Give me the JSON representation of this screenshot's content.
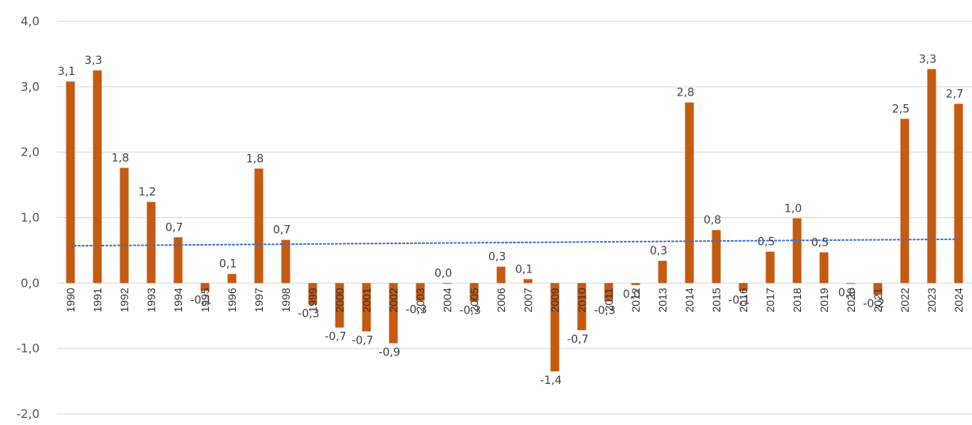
{
  "chart_data": {
    "type": "bar",
    "title": "",
    "xlabel": "",
    "ylabel": "",
    "ylim": [
      -2.0,
      4.0
    ],
    "yticks": [
      "4,0",
      "3,0",
      "2,0",
      "1,0",
      "0,0",
      "-1,0",
      "-2,0"
    ],
    "categories": [
      "1990",
      "1991",
      "1992",
      "1993",
      "1994",
      "1995",
      "1996",
      "1997",
      "1998",
      "1999",
      "2000",
      "2001",
      "2002",
      "2003",
      "2004",
      "2005",
      "2006",
      "2007",
      "2009",
      "2010",
      "2011",
      "2012",
      "2013",
      "2014",
      "2015",
      "2016",
      "2017",
      "2018",
      "2019",
      "2020",
      "2021",
      "2022",
      "2023",
      "2024"
    ],
    "series": [
      {
        "values": [
          3.08,
          3.25,
          1.76,
          1.24,
          0.7,
          -0.12,
          0.14,
          1.75,
          0.66,
          -0.33,
          -0.68,
          -0.74,
          -0.92,
          -0.27,
          0.0,
          -0.28,
          0.25,
          0.06,
          -1.35,
          -0.72,
          -0.28,
          -0.03,
          0.34,
          2.76,
          0.81,
          -0.12,
          0.48,
          0.99,
          0.47,
          -0.01,
          -0.18,
          2.51,
          3.27,
          2.74
        ],
        "labels": [
          "3,1",
          "3,3",
          "1,8",
          "1,2",
          "0,7",
          "-0,1",
          "0,1",
          "1,8",
          "0,7",
          "-0,3",
          "-0,7",
          "-0,7",
          "-0,9",
          "-0,3",
          "0,0",
          "-0,3",
          "0,3",
          "0,1",
          "-1,4",
          "-0,7",
          "-0,3",
          "0,0",
          "0,3",
          "2,8",
          "0,8",
          "-0,1",
          "0,5",
          "1,0",
          "0,5",
          "0,0",
          "-0,2",
          "2,5",
          "3,3",
          "2,7"
        ]
      }
    ],
    "trendline": {
      "type": "linear",
      "style": "dotted",
      "start": 0.57,
      "end": 0.67
    },
    "grid": true,
    "legend": "none",
    "colors": {
      "bar": "#C55A11",
      "trend": "#4472C4",
      "grid": "#D9D9D9"
    }
  }
}
